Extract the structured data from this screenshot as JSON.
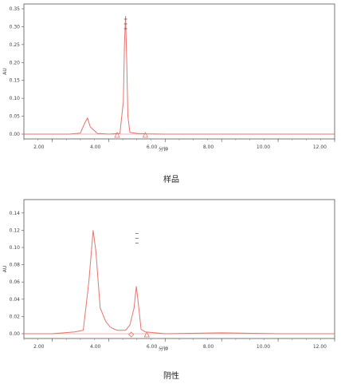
{
  "chart_data": [
    {
      "type": "line",
      "caption": "样品",
      "xlabel": "分钟",
      "ylabel": "AU",
      "xlim": [
        1.0,
        12.0
      ],
      "ylim": [
        0.0,
        0.35
      ],
      "x_ticks": [
        2.0,
        4.0,
        6.0,
        8.0,
        10.0,
        12.0
      ],
      "x_tick_labels": [
        "2.00",
        "4.00",
        "6.00",
        "8.00",
        "10.00",
        "12.00"
      ],
      "y_ticks": [
        0.0,
        0.05,
        0.1,
        0.15,
        0.2,
        0.25,
        0.3,
        0.35
      ],
      "y_tick_labels": [
        "0.00",
        "0.05",
        "0.10",
        "0.15",
        "0.20",
        "0.25",
        "0.30",
        "0.35"
      ],
      "color": "#e8736e",
      "series": [
        {
          "x": [
            1.0,
            2.6,
            3.0,
            3.15,
            3.25,
            3.35,
            3.6,
            4.0,
            4.4,
            4.52,
            4.56,
            4.6,
            4.64,
            4.68,
            4.75,
            5.0,
            5.3,
            6.0,
            8.0,
            10.0,
            12.0
          ],
          "y": [
            0.0,
            0.0,
            0.003,
            0.03,
            0.045,
            0.02,
            0.002,
            0.0,
            0.002,
            0.09,
            0.25,
            0.33,
            0.2,
            0.05,
            0.005,
            0.002,
            0.001,
            0.0,
            0.0,
            0.0,
            0.0
          ]
        }
      ],
      "markers": [
        {
          "x": 4.3,
          "shape": "triangle"
        },
        {
          "x": 5.3,
          "shape": "triangle"
        }
      ],
      "peak_label_x": 4.6
    },
    {
      "type": "line",
      "caption": "阴性",
      "xlabel": "分钟",
      "ylabel": "AU",
      "xlim": [
        1.0,
        12.0
      ],
      "ylim": [
        -0.002,
        0.15
      ],
      "x_ticks": [
        2.0,
        4.0,
        6.0,
        8.0,
        10.0,
        12.0
      ],
      "x_tick_labels": [
        "2.00",
        "4.00",
        "6.00",
        "8.00",
        "10.00",
        "12.00"
      ],
      "y_ticks": [
        0.0,
        0.02,
        0.04,
        0.06,
        0.08,
        0.1,
        0.12,
        0.14
      ],
      "y_tick_labels": [
        "0.00",
        "0.02",
        "0.04",
        "0.06",
        "0.08",
        "0.10",
        "0.12",
        "0.14"
      ],
      "color": "#e8736e",
      "series": [
        {
          "x": [
            1.0,
            2.0,
            2.8,
            3.1,
            3.3,
            3.45,
            3.55,
            3.7,
            3.9,
            4.05,
            4.15,
            4.3,
            4.6,
            4.75,
            4.9,
            4.98,
            5.05,
            5.15,
            5.3,
            6.0,
            8.0,
            10.0,
            12.0
          ],
          "y": [
            0.0,
            0.0,
            0.002,
            0.004,
            0.06,
            0.12,
            0.095,
            0.03,
            0.014,
            0.008,
            0.006,
            0.004,
            0.004,
            0.01,
            0.03,
            0.055,
            0.035,
            0.005,
            0.002,
            0.0,
            0.001,
            0.0,
            0.0
          ]
        }
      ],
      "markers": [
        {
          "x": 4.8,
          "shape": "diamond"
        },
        {
          "x": 5.35,
          "shape": "triangle"
        }
      ],
      "peak_label_x": 5.0
    }
  ]
}
